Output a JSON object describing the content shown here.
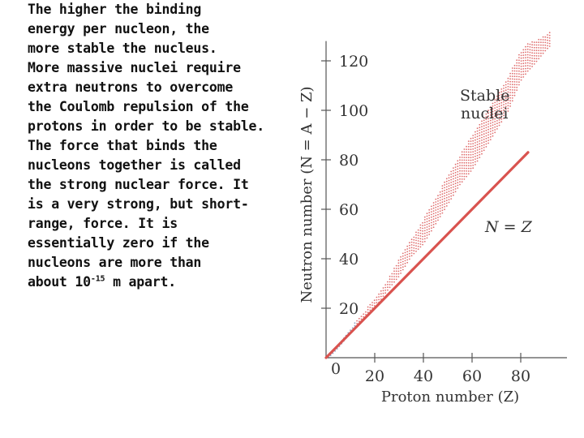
{
  "paragraphs": {
    "p1": "The higher the binding\nenergy per nucleon, the\nmore stable the nucleus.",
    "p2": "More massive nuclei require\nextra neutrons to overcome\nthe Coulomb repulsion of the\nprotons in order to be stable.",
    "p3_main": "The force that binds the\nnucleons together is called\nthe strong nuclear force. It\nis a very strong, but short-\nrange, force. It is\nessentially zero if the\nnucleons are more than\nabout 10",
    "p3_exp": "-15",
    "p3_tail": " m apart."
  },
  "chart_data": {
    "type": "scatter",
    "title": "",
    "xlabel": "Proton number (Z)",
    "ylabel": "Neutron number (N = A − Z)",
    "xlim": [
      0,
      95
    ],
    "ylim": [
      0,
      128
    ],
    "x_ticks": [
      20,
      40,
      60,
      80
    ],
    "y_ticks": [
      20,
      40,
      60,
      80,
      100,
      120
    ],
    "origin_label": "0",
    "reference_line": {
      "label": "N = Z",
      "x": [
        0,
        83
      ],
      "y": [
        0,
        83
      ],
      "color": "#d9534f"
    },
    "stable_label_lines": [
      "Stable",
      "nuclei"
    ],
    "stable_band": {
      "Z": [
        1,
        5,
        10,
        15,
        20,
        25,
        30,
        35,
        40,
        45,
        50,
        55,
        60,
        65,
        70,
        75,
        80,
        83,
        85,
        90,
        92
      ],
      "N_min": [
        0,
        4,
        10,
        15,
        20,
        27,
        33,
        41,
        46,
        54,
        62,
        70,
        76,
        84,
        92,
        100,
        112,
        116,
        118,
        124,
        126
      ],
      "N_max": [
        2,
        6,
        12,
        18,
        24,
        31,
        40,
        48,
        56,
        64,
        74,
        82,
        90,
        98,
        106,
        114,
        124,
        127,
        128,
        130,
        132
      ]
    },
    "colors": {
      "stable": "#e07070",
      "low_z": "#8a9fc0",
      "axis": "#555555"
    }
  }
}
